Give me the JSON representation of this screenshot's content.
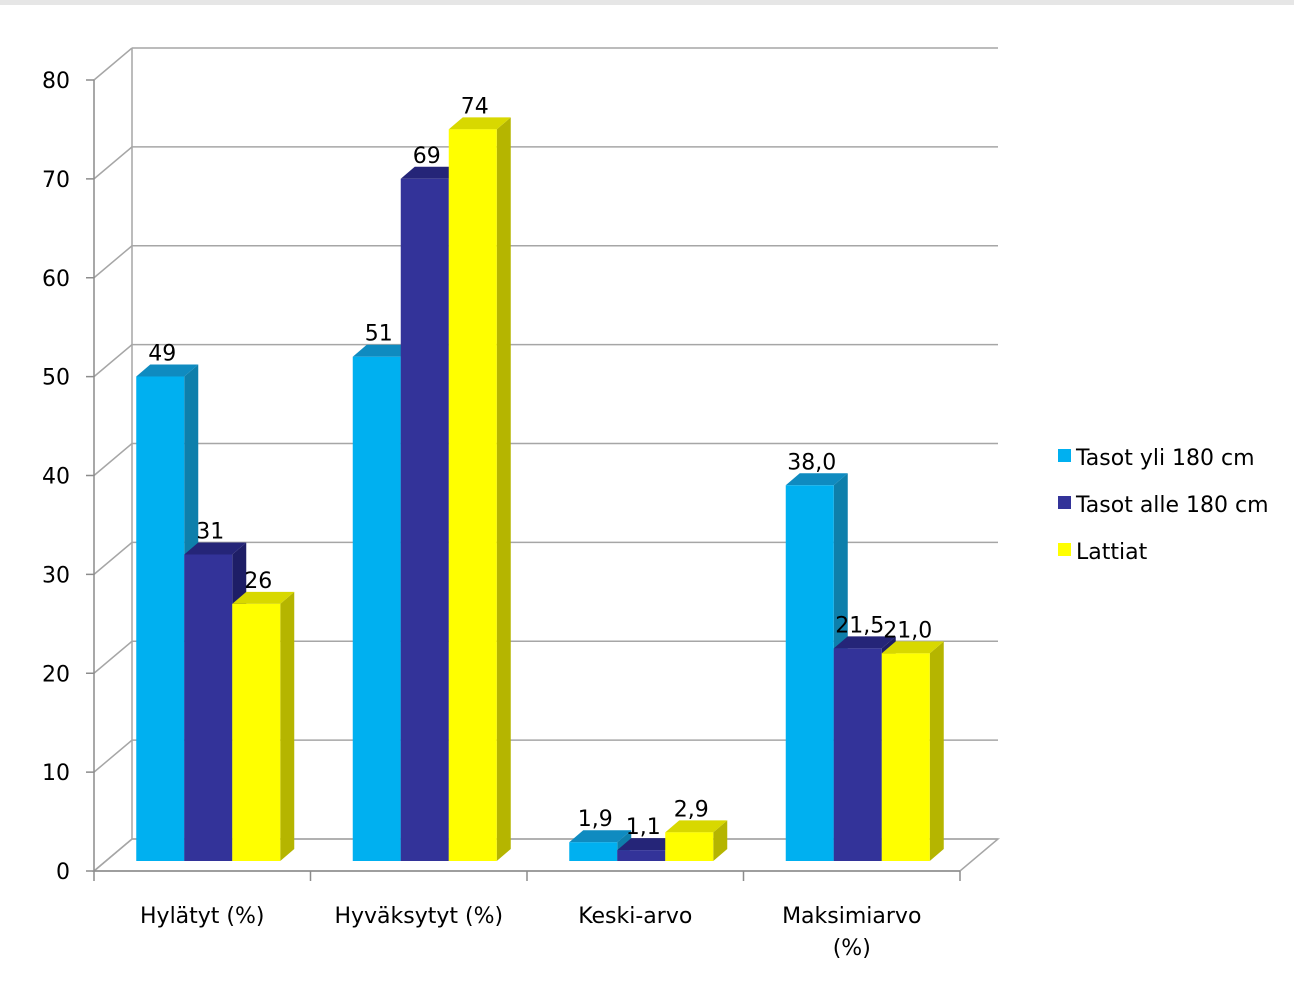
{
  "chart_data": {
    "type": "bar",
    "categories": [
      [
        "Hylätyt (%)"
      ],
      [
        "Hyväksytyt (%)"
      ],
      [
        "Keski-arvo"
      ],
      [
        "Maksimiarvo",
        "(%)"
      ]
    ],
    "series": [
      {
        "name": "Tasot yli 180 cm",
        "color": "#00b0f0",
        "side_color": "#0e7fab",
        "top_color": "#0f8bc0",
        "values": [
          49,
          51,
          1.9,
          38.0
        ],
        "labels": [
          "49",
          "51",
          "1,9",
          "38,0"
        ]
      },
      {
        "name": "Tasot alle 180 cm",
        "color": "#333399",
        "side_color": "#1e1e66",
        "top_color": "#252578",
        "values": [
          31,
          69,
          1.1,
          21.5
        ],
        "labels": [
          "31",
          "69",
          "1,1",
          "21,5"
        ]
      },
      {
        "name": "Lattiat",
        "color": "#ffff00",
        "side_color": "#b5b500",
        "top_color": "#d8d800",
        "values": [
          26,
          74,
          2.9,
          21.0
        ],
        "labels": [
          "26",
          "74",
          "2,9",
          "21,0"
        ]
      }
    ],
    "ylim": [
      0,
      80
    ],
    "yticks": [
      "0",
      "10",
      "20",
      "30",
      "40",
      "50",
      "60",
      "70",
      "80"
    ],
    "grid": true,
    "legend_position": "right",
    "title": "",
    "xlabel": "",
    "ylabel": ""
  }
}
